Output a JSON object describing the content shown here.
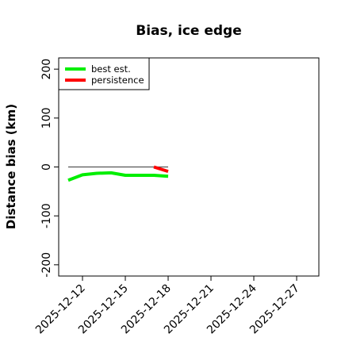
{
  "chart_data": {
    "type": "line",
    "title": "Bias, ice edge",
    "xlabel": "",
    "ylabel": "Distance bias (km)",
    "x_ticks": [
      "2025-12-12",
      "2025-12-15",
      "2025-12-18",
      "2025-12-21",
      "2025-12-24",
      "2025-12-27"
    ],
    "y_ticks": [
      -200,
      -100,
      0,
      100,
      200
    ],
    "xlim": [
      "2025-12-11",
      "2025-12-28"
    ],
    "ylim": [
      -210,
      210
    ],
    "reference_line": {
      "y": 0,
      "x_start": "2025-12-11",
      "x_end": "2025-12-18",
      "color": "#555555"
    },
    "legend": {
      "placement": "top-left"
    },
    "series": [
      {
        "name": "best est.",
        "color": "#00ee00",
        "points": [
          {
            "x": "2025-12-11",
            "y": -27
          },
          {
            "x": "2025-12-12",
            "y": -16
          },
          {
            "x": "2025-12-13",
            "y": -13
          },
          {
            "x": "2025-12-14",
            "y": -12
          },
          {
            "x": "2025-12-15",
            "y": -17
          },
          {
            "x": "2025-12-16",
            "y": -17
          },
          {
            "x": "2025-12-17",
            "y": -17
          },
          {
            "x": "2025-12-18",
            "y": -19
          }
        ]
      },
      {
        "name": "persistence",
        "color": "#ff0000",
        "points": [
          {
            "x": "2025-12-17",
            "y": 0
          },
          {
            "x": "2025-12-18",
            "y": -9
          }
        ]
      }
    ]
  }
}
